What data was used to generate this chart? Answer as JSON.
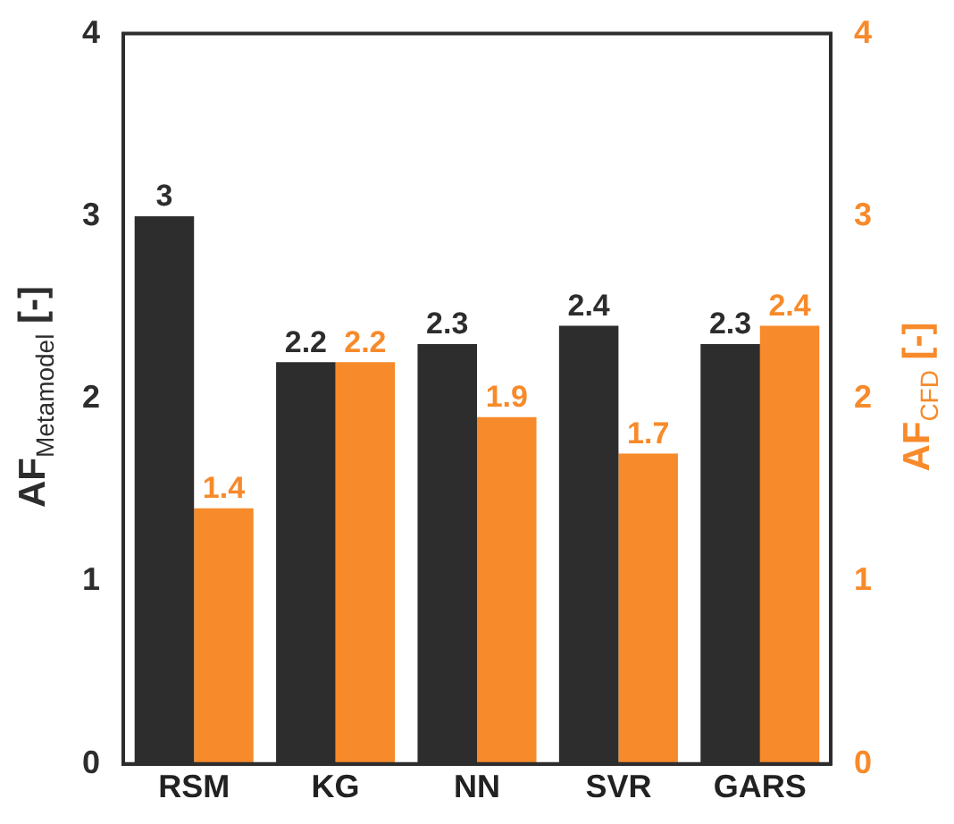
{
  "chart_data": {
    "type": "bar",
    "categories": [
      "RSM",
      "KG",
      "NN",
      "SVR",
      "GARS"
    ],
    "ylabel": "AF$_{Metamodel}$ [-]",
    "y2label": "AF$_{CFD}$ [-]",
    "series": [
      {
        "color": "#2d2d2d",
        "values": [
          3,
          2.2,
          2.3,
          2.4,
          2.3
        ]
      },
      {
        "color": "#f78a2a",
        "values": [
          1.4,
          2.2,
          1.9,
          1.7,
          2.4
        ],
        "axis": "y2"
      }
    ],
    "ylim": [
      0,
      4
    ],
    "yticks": [
      0,
      1,
      2,
      3,
      4
    ],
    "y2lim": [
      0,
      4
    ],
    "y2ticks": [
      0,
      1,
      2,
      3,
      4
    ],
    "data_labels": true,
    "grid": false,
    "legend": false
  }
}
